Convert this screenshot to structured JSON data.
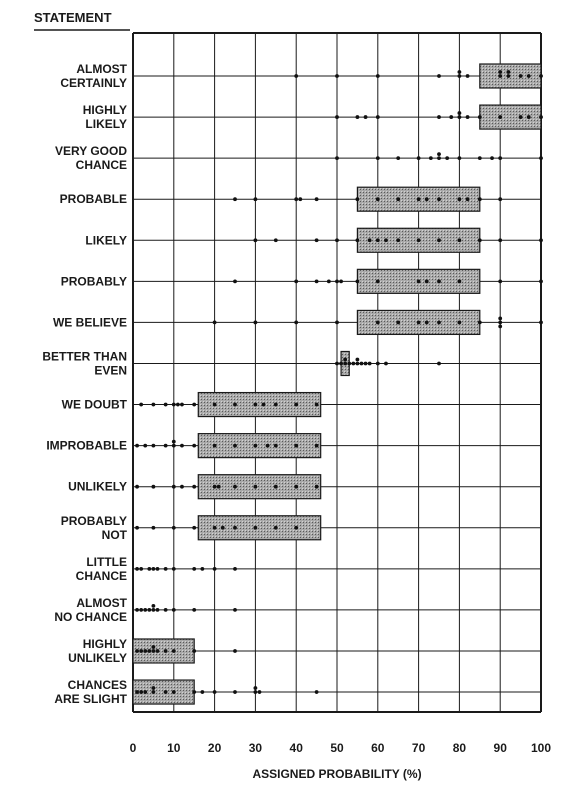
{
  "chart_data": {
    "type": "scatter",
    "title": "",
    "category_header": "STATEMENT",
    "xlabel": "ASSIGNED PROBABILITY (%)",
    "xlim": [
      0,
      100
    ],
    "xticks": [
      "0",
      "10",
      "20",
      "30",
      "40",
      "50",
      "60",
      "70",
      "80",
      "90",
      "100"
    ],
    "grid": true,
    "categories": [
      {
        "label": [
          "ALMOST",
          "CERTAINLY"
        ],
        "range": [
          85,
          100
        ],
        "points": [
          40,
          50,
          60,
          75,
          80,
          80,
          82,
          90,
          90,
          92,
          92,
          95,
          97,
          100
        ]
      },
      {
        "label": [
          "HIGHLY",
          "LIKELY"
        ],
        "range": [
          85,
          100
        ],
        "points": [
          50,
          55,
          57,
          60,
          75,
          78,
          80,
          80,
          82,
          85,
          90,
          95,
          97,
          100
        ]
      },
      {
        "label": [
          "VERY GOOD",
          "CHANCE"
        ],
        "range": null,
        "points": [
          50,
          60,
          65,
          70,
          73,
          75,
          75,
          77,
          80,
          85,
          88,
          90,
          100
        ]
      },
      {
        "label": [
          "PROBABLE"
        ],
        "range": [
          55,
          85
        ],
        "points": [
          25,
          30,
          40,
          41,
          45,
          55,
          60,
          65,
          70,
          72,
          75,
          80,
          82,
          85,
          90
        ]
      },
      {
        "label": [
          "LIKELY"
        ],
        "range": [
          55,
          85
        ],
        "points": [
          30,
          35,
          45,
          50,
          55,
          58,
          60,
          62,
          65,
          70,
          75,
          80,
          85,
          90,
          100
        ]
      },
      {
        "label": [
          "PROBABLY"
        ],
        "range": [
          55,
          85
        ],
        "points": [
          25,
          40,
          45,
          48,
          50,
          51,
          55,
          60,
          70,
          72,
          75,
          80,
          90,
          100
        ]
      },
      {
        "label": [
          "WE BELIEVE"
        ],
        "range": [
          55,
          85
        ],
        "points": [
          20,
          30,
          40,
          50,
          60,
          65,
          70,
          72,
          75,
          80,
          85,
          90,
          90,
          90,
          100
        ]
      },
      {
        "label": [
          "BETTER THAN",
          "EVEN"
        ],
        "range": [
          51,
          53
        ],
        "points": [
          50,
          51,
          52,
          52,
          53,
          54,
          55,
          55,
          56,
          57,
          58,
          60,
          62,
          75
        ]
      },
      {
        "label": [
          "WE DOUBT"
        ],
        "range": [
          16,
          46
        ],
        "points": [
          2,
          5,
          8,
          10,
          11,
          12,
          15,
          20,
          25,
          30,
          32,
          35,
          40,
          45
        ]
      },
      {
        "label": [
          "IMPROBABLE"
        ],
        "range": [
          16,
          46
        ],
        "points": [
          1,
          3,
          5,
          8,
          10,
          10,
          12,
          15,
          20,
          25,
          30,
          33,
          35,
          40,
          45
        ]
      },
      {
        "label": [
          "UNLIKELY"
        ],
        "range": [
          16,
          46
        ],
        "points": [
          1,
          5,
          10,
          12,
          15,
          20,
          21,
          25,
          30,
          35,
          40,
          45
        ]
      },
      {
        "label": [
          "PROBABLY",
          "NOT"
        ],
        "range": [
          16,
          46
        ],
        "points": [
          1,
          5,
          10,
          15,
          20,
          22,
          25,
          30,
          35,
          40
        ]
      },
      {
        "label": [
          "LITTLE",
          "CHANCE"
        ],
        "range": null,
        "points": [
          1,
          2,
          4,
          5,
          6,
          8,
          10,
          15,
          17,
          20,
          25
        ]
      },
      {
        "label": [
          "ALMOST",
          "NO CHANCE"
        ],
        "range": null,
        "points": [
          1,
          2,
          3,
          4,
          5,
          5,
          6,
          8,
          10,
          15,
          25
        ]
      },
      {
        "label": [
          "HIGHLY",
          "UNLIKELY"
        ],
        "range": [
          0,
          15
        ],
        "points": [
          1,
          2,
          3,
          4,
          5,
          5,
          6,
          8,
          10,
          15,
          25
        ]
      },
      {
        "label": [
          "CHANCES",
          "ARE SLIGHT"
        ],
        "range": [
          0,
          15
        ],
        "points": [
          1,
          2,
          3,
          5,
          5,
          8,
          10,
          15,
          17,
          20,
          25,
          30,
          30,
          31,
          45
        ]
      }
    ]
  }
}
